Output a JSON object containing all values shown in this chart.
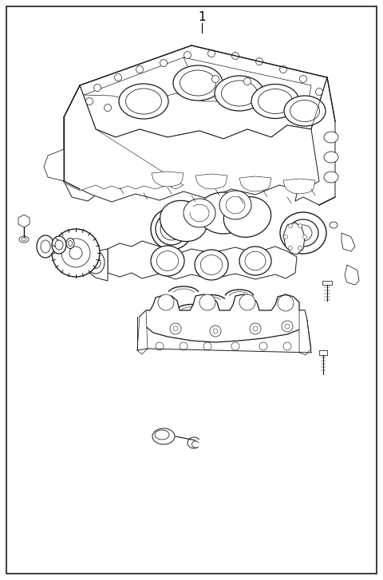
{
  "bg_color": "#ffffff",
  "border_color": "#1a1a1a",
  "line_color": "#1a1a1a",
  "fig_width": 4.8,
  "fig_height": 7.27,
  "dpi": 100,
  "title": "1"
}
